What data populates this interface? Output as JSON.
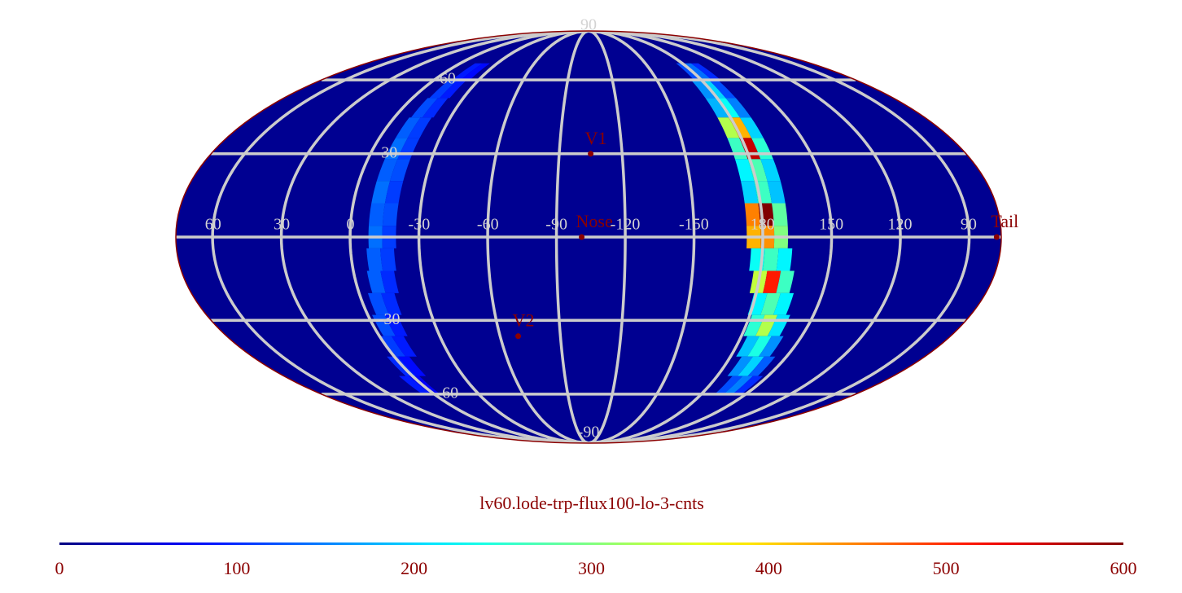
{
  "map": {
    "type": "mollweide",
    "title": "lv60.lode-trp-flux100-lo-3-cnts",
    "center_lon": -104,
    "background_value": 10,
    "cell_width_deg": 6,
    "cell_height_deg": 8,
    "lon_ticks": [
      60,
      30,
      0,
      -30,
      -60,
      -90,
      -120,
      -150,
      180,
      150,
      120,
      90
    ],
    "lat_ticks": [
      90,
      60,
      30,
      -30,
      -60,
      -90
    ],
    "markers": [
      {
        "label": "V1",
        "lon": -105,
        "lat": 30
      },
      {
        "label": "Nose",
        "lon": -101,
        "lat": 0
      },
      {
        "label": "V2",
        "lon": -69,
        "lat": -36
      },
      {
        "label": "Tail",
        "lon": 78,
        "lat": 0
      }
    ],
    "cells": [
      {
        "lon": -178,
        "lat": 64,
        "value": 120
      },
      {
        "lon": 176,
        "lat": 64,
        "value": 140
      },
      {
        "lon": 170,
        "lat": 64,
        "value": 100
      },
      {
        "lon": -176,
        "lat": 56,
        "value": 160
      },
      {
        "lon": 178,
        "lat": 56,
        "value": 200
      },
      {
        "lon": 172,
        "lat": 56,
        "value": 120
      },
      {
        "lon": -176,
        "lat": 48,
        "value": 180
      },
      {
        "lon": 178,
        "lat": 48,
        "value": 230
      },
      {
        "lon": 172,
        "lat": 48,
        "value": 150
      },
      {
        "lon": -176,
        "lat": 40,
        "value": 330
      },
      {
        "lon": 178,
        "lat": 40,
        "value": 420
      },
      {
        "lon": 172,
        "lat": 40,
        "value": 200
      },
      {
        "lon": -176,
        "lat": 32,
        "value": 260
      },
      {
        "lon": 178,
        "lat": 32,
        "value": 560
      },
      {
        "lon": 172,
        "lat": 32,
        "value": 250
      },
      {
        "lon": -176,
        "lat": 24,
        "value": 220
      },
      {
        "lon": 178,
        "lat": 24,
        "value": 270
      },
      {
        "lon": 172,
        "lat": 24,
        "value": 200
      },
      {
        "lon": -176,
        "lat": 16,
        "value": 200
      },
      {
        "lon": 178,
        "lat": 16,
        "value": 260
      },
      {
        "lon": 172,
        "lat": 16,
        "value": 190
      },
      {
        "lon": -176,
        "lat": 8,
        "value": 450
      },
      {
        "lon": 178,
        "lat": 8,
        "value": 600
      },
      {
        "lon": 172,
        "lat": 8,
        "value": 280
      },
      {
        "lon": -176,
        "lat": 0,
        "value": 420
      },
      {
        "lon": 178,
        "lat": 0,
        "value": 440
      },
      {
        "lon": 172,
        "lat": 0,
        "value": 300
      },
      {
        "lon": -178,
        "lat": -8,
        "value": 230
      },
      {
        "lon": 176,
        "lat": -8,
        "value": 260
      },
      {
        "lon": 170,
        "lat": -8,
        "value": 220
      },
      {
        "lon": 180,
        "lat": -16,
        "value": 340
      },
      {
        "lon": 174,
        "lat": -16,
        "value": 510
      },
      {
        "lon": 168,
        "lat": -16,
        "value": 260
      },
      {
        "lon": 178,
        "lat": -24,
        "value": 220
      },
      {
        "lon": 172,
        "lat": -24,
        "value": 270
      },
      {
        "lon": 166,
        "lat": -24,
        "value": 220
      },
      {
        "lon": 176,
        "lat": -32,
        "value": 250
      },
      {
        "lon": 170,
        "lat": -32,
        "value": 330
      },
      {
        "lon": 164,
        "lat": -32,
        "value": 210
      },
      {
        "lon": 174,
        "lat": -40,
        "value": 190
      },
      {
        "lon": 168,
        "lat": -40,
        "value": 240
      },
      {
        "lon": 162,
        "lat": -40,
        "value": 160
      },
      {
        "lon": 171,
        "lat": -48,
        "value": 160
      },
      {
        "lon": 165,
        "lat": -48,
        "value": 200
      },
      {
        "lon": 159,
        "lat": -48,
        "value": 130
      },
      {
        "lon": 168,
        "lat": -56,
        "value": 120
      },
      {
        "lon": 162,
        "lat": -56,
        "value": 150
      },
      {
        "lon": 156,
        "lat": -56,
        "value": 100
      },
      {
        "lon": -15,
        "lat": 64,
        "value": 90
      },
      {
        "lon": -21,
        "lat": 64,
        "value": 80
      },
      {
        "lon": -13,
        "lat": 56,
        "value": 110
      },
      {
        "lon": -19,
        "lat": 56,
        "value": 90
      },
      {
        "lon": -12,
        "lat": 48,
        "value": 120
      },
      {
        "lon": -18,
        "lat": 48,
        "value": 100
      },
      {
        "lon": -11,
        "lat": 40,
        "value": 130
      },
      {
        "lon": -17,
        "lat": 40,
        "value": 110
      },
      {
        "lon": -11,
        "lat": 32,
        "value": 140
      },
      {
        "lon": -17,
        "lat": 32,
        "value": 110
      },
      {
        "lon": -11,
        "lat": 24,
        "value": 130
      },
      {
        "lon": -17,
        "lat": 24,
        "value": 120
      },
      {
        "lon": -11,
        "lat": 16,
        "value": 140
      },
      {
        "lon": -17,
        "lat": 16,
        "value": 110
      },
      {
        "lon": -11,
        "lat": 8,
        "value": 130
      },
      {
        "lon": -17,
        "lat": 8,
        "value": 120
      },
      {
        "lon": -11,
        "lat": 0,
        "value": 140
      },
      {
        "lon": -17,
        "lat": 0,
        "value": 110
      },
      {
        "lon": -10,
        "lat": -8,
        "value": 130
      },
      {
        "lon": -16,
        "lat": -8,
        "value": 110
      },
      {
        "lon": -9,
        "lat": -16,
        "value": 130
      },
      {
        "lon": -15,
        "lat": -16,
        "value": 100
      },
      {
        "lon": -7,
        "lat": -24,
        "value": 120
      },
      {
        "lon": -13,
        "lat": -24,
        "value": 100
      },
      {
        "lon": -5,
        "lat": -32,
        "value": 120
      },
      {
        "lon": -11,
        "lat": -32,
        "value": 90
      },
      {
        "lon": -3,
        "lat": -40,
        "value": 110
      },
      {
        "lon": -9,
        "lat": -40,
        "value": 90
      },
      {
        "lon": 1,
        "lat": -48,
        "value": 100
      },
      {
        "lon": -5,
        "lat": -48,
        "value": 80
      },
      {
        "lon": 5,
        "lat": -56,
        "value": 90
      },
      {
        "lon": -1,
        "lat": -56,
        "value": 70
      }
    ],
    "colorbar": {
      "colormap": "jet",
      "lim": [
        0,
        600
      ],
      "ticks": [
        0,
        100,
        200,
        300,
        400,
        500,
        600
      ]
    }
  }
}
